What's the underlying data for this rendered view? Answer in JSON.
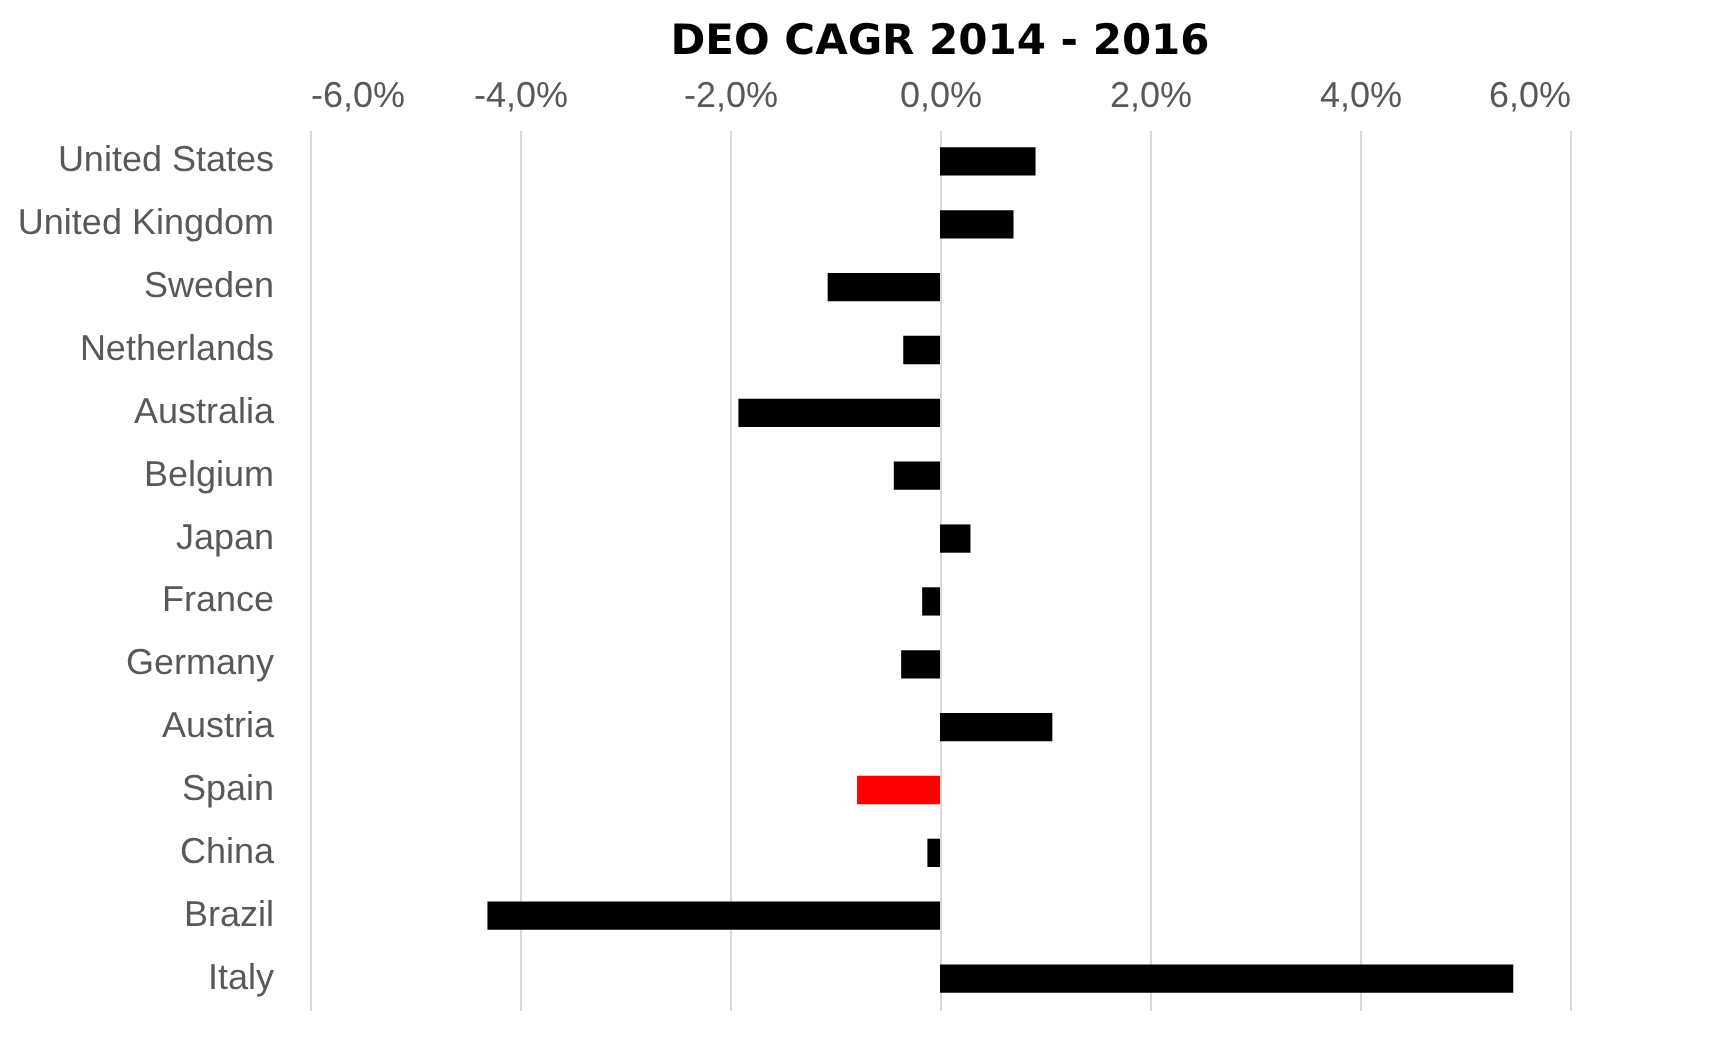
{
  "chart_data": {
    "type": "bar",
    "orientation": "horizontal",
    "title": "DEO CAGR 2014 - 2016",
    "categories": [
      "United States",
      "United Kingdom",
      "Sweden",
      "Netherlands",
      "Australia",
      "Belgium",
      "Japan",
      "France",
      "Germany",
      "Austria",
      "Spain",
      "China",
      "Brazil",
      "Italy"
    ],
    "values": [
      0.91,
      0.7,
      -1.07,
      -0.35,
      -1.92,
      -0.44,
      0.29,
      -0.17,
      -0.37,
      1.07,
      -0.79,
      -0.12,
      -4.31,
      5.46
    ],
    "colors": [
      "#000000",
      "#000000",
      "#000000",
      "#000000",
      "#000000",
      "#000000",
      "#000000",
      "#000000",
      "#000000",
      "#000000",
      "#ff0000",
      "#000000",
      "#000000",
      "#000000"
    ],
    "xlim": [
      -6,
      6
    ],
    "xticks": [
      {
        "value": -6,
        "label": "-6,0%"
      },
      {
        "value": -4,
        "label": "-4,0%"
      },
      {
        "value": -2,
        "label": "-2,0%"
      },
      {
        "value": 0,
        "label": "0,0%"
      },
      {
        "value": 2,
        "label": "2,0%"
      },
      {
        "value": 4,
        "label": "4,0%"
      },
      {
        "value": 6,
        "label": "6,0%"
      }
    ],
    "grid": "x"
  }
}
